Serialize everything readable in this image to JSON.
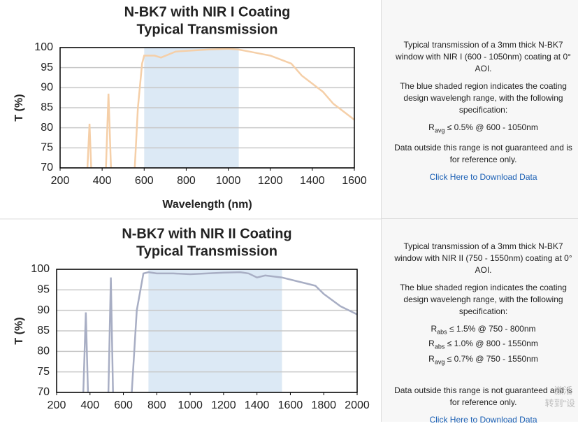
{
  "chart_data": [
    {
      "type": "line",
      "title": "N-BK7 with NIR I Coating",
      "subtitle": "Typical Transmission",
      "y_label": "T (%)",
      "x_label": "Wavelength (nm)",
      "color": "#f5cfa8",
      "shade_color": "#dce9f5",
      "shade": [
        600,
        1050
      ],
      "x": [
        330,
        340,
        348,
        null,
        418,
        430,
        442,
        null,
        555,
        570,
        590,
        600,
        650,
        680,
        750,
        900,
        1000,
        1050,
        1100,
        1200,
        1300,
        1350,
        1400,
        1450,
        1500,
        1550,
        1600
      ],
      "values": [
        70,
        81,
        70,
        null,
        70,
        88.5,
        70,
        null,
        70,
        85,
        96,
        98,
        98,
        97.5,
        99,
        99.5,
        99.7,
        99.5,
        99,
        98,
        96,
        93,
        91,
        89,
        86,
        84,
        82
      ],
      "xlim": [
        200,
        1600
      ],
      "xticks": [
        200,
        400,
        600,
        800,
        1000,
        1200,
        1400,
        1600
      ],
      "ylim": [
        70,
        100
      ],
      "yticks": [
        70,
        75,
        80,
        85,
        90,
        95,
        100
      ],
      "grid": true
    },
    {
      "type": "line",
      "title": "N-BK7 with NIR II Coating",
      "subtitle": "Typical Transmission",
      "y_label": "T (%)",
      "color": "#a8aec4",
      "shade_color": "#dce9f5",
      "shade": [
        750,
        1550
      ],
      "x": [
        360,
        375,
        388,
        null,
        510,
        525,
        538,
        null,
        650,
        680,
        720,
        750,
        800,
        900,
        1000,
        1100,
        1200,
        1300,
        1350,
        1400,
        1450,
        1550,
        1650,
        1700,
        1750,
        1800,
        1900,
        2000
      ],
      "values": [
        70,
        89.5,
        70,
        null,
        70,
        98,
        70,
        null,
        70,
        90,
        99,
        99.3,
        99,
        99,
        98.8,
        99,
        99.2,
        99.3,
        99,
        98,
        98.5,
        98,
        97,
        96.5,
        96,
        94,
        91,
        89
      ],
      "xlim": [
        200,
        2000
      ],
      "xticks": [
        200,
        400,
        600,
        800,
        1000,
        1200,
        1400,
        1600,
        1800,
        2000
      ],
      "ylim": [
        70,
        100
      ],
      "yticks": [
        70,
        75,
        80,
        85,
        90,
        95,
        100
      ],
      "grid": true
    }
  ],
  "panels": [
    {
      "paragraphs": [
        "Typical transmission of a 3mm thick N-BK7 window with NIR I (600 - 1050nm) coating at 0° AOI.",
        "The blue shaded region indicates the coating design wavelengh range, with the following specification:"
      ],
      "specs": [
        {
          "symbol": "R",
          "sub": "avg",
          "text": "≤ 0.5% @ 600 - 1050nm"
        }
      ],
      "note": "Data outside this range is not guaranteed and is for reference only.",
      "link": "Click Here to Download Data"
    },
    {
      "paragraphs": [
        "Typical transmission of a 3mm thick N-BK7 window with NIR II (750 - 1550nm) coating at 0° AOI.",
        "The blue shaded region indicates the coating design wavelengh range, with the following specification:"
      ],
      "specs": [
        {
          "symbol": "R",
          "sub": "abs",
          "text": "≤ 1.5% @ 750 - 800nm"
        },
        {
          "symbol": "R",
          "sub": "abs",
          "text": "≤ 1.0% @ 800 - 1550nm"
        },
        {
          "symbol": "R",
          "sub": "avg",
          "text": "≤ 0.7% @ 750 - 1550nm"
        }
      ],
      "note": "Data outside this range is not guaranteed and is for reference only.",
      "link": "Click Here to Download Data"
    }
  ],
  "watermark": [
    "激活",
    "转到“设"
  ]
}
